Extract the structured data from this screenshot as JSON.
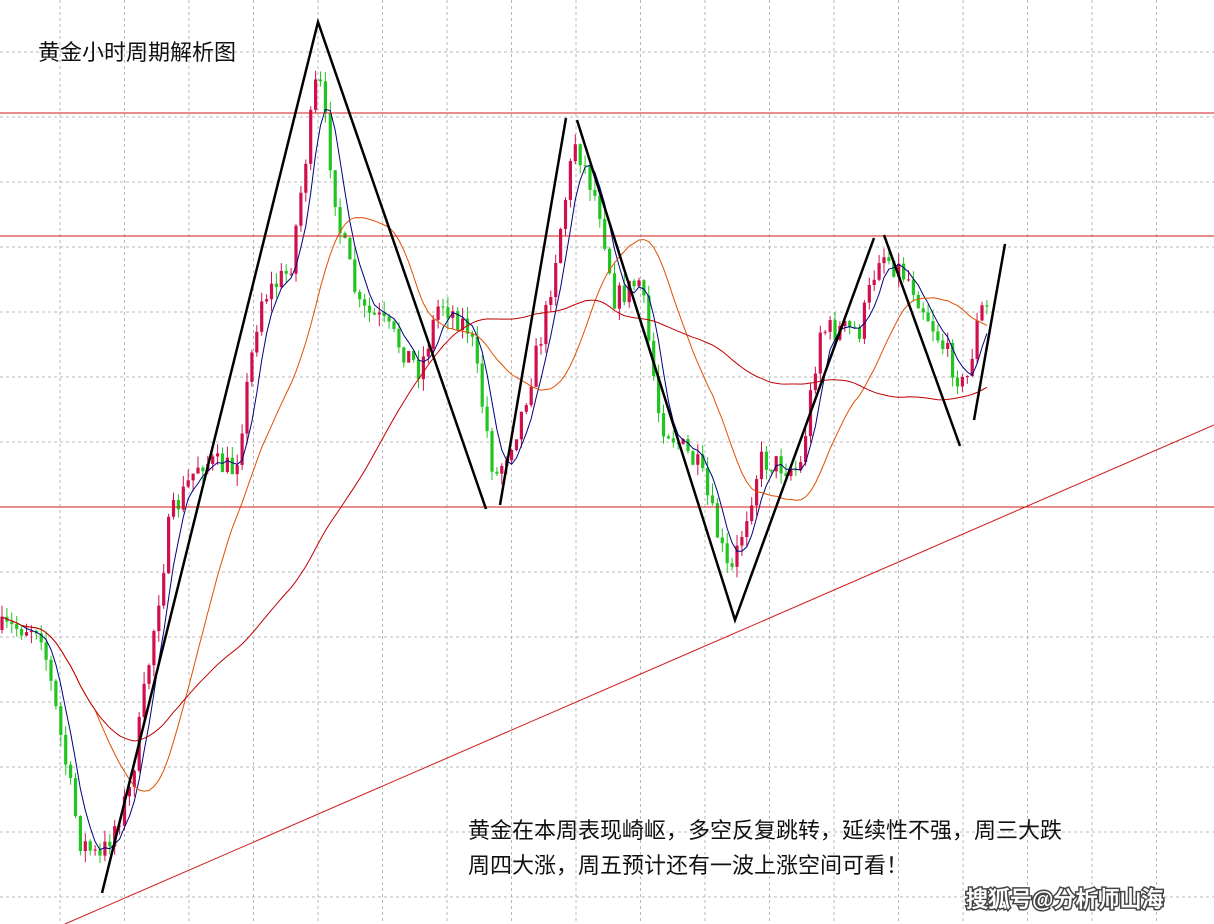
{
  "chart_data": {
    "type": "candlestick",
    "title": "黄金小时周期解析图",
    "annotation": [
      "黄金在本周表现崎岖，多空反复跳转，延续性不强，周三大跌",
      "周四大涨，周五预计还有一波上涨空间可看！"
    ],
    "watermark": "搜狐号@分析师山海"
  }
}
